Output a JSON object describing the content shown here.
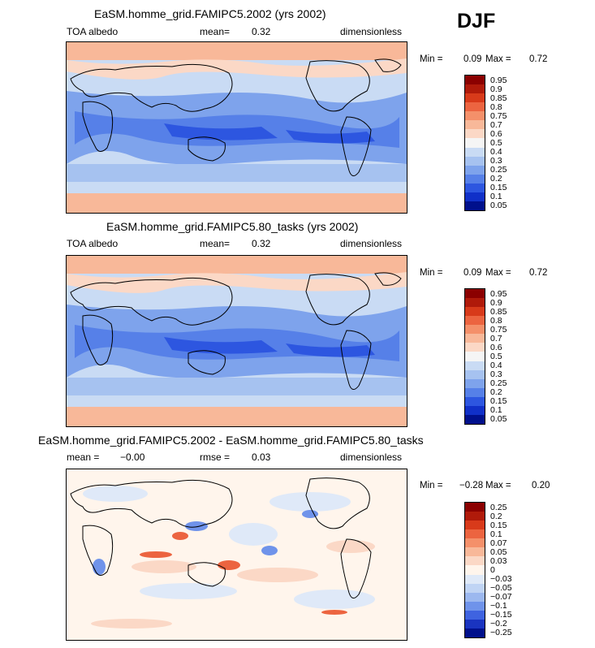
{
  "season": "DJF",
  "panels": [
    {
      "title": "EaSM.homme_grid.FAMIPC5.2002 (yrs 2002)",
      "variable": "TOA albedo",
      "stat": "mean=",
      "stat_value": "0.32",
      "units": "dimensionless",
      "min_label": "Min =",
      "min_value": "0.09",
      "max_label": "Max =",
      "max_value": "0.72",
      "levels": [
        "0.95",
        "0.9",
        "0.85",
        "0.8",
        "0.75",
        "0.7",
        "0.6",
        "0.5",
        "0.4",
        "0.3",
        "0.25",
        "0.2",
        "0.15",
        "0.1",
        "0.05"
      ]
    },
    {
      "title": "EaSM.homme_grid.FAMIPC5.80_tasks (yrs 2002)",
      "variable": "TOA albedo",
      "stat": "mean=",
      "stat_value": "0.32",
      "units": "dimensionless",
      "min_label": "Min =",
      "min_value": "0.09",
      "max_label": "Max =",
      "max_value": "0.72",
      "levels": [
        "0.95",
        "0.9",
        "0.85",
        "0.8",
        "0.75",
        "0.7",
        "0.6",
        "0.5",
        "0.4",
        "0.3",
        "0.25",
        "0.2",
        "0.15",
        "0.1",
        "0.05"
      ]
    },
    {
      "title": "EaSM.homme_grid.FAMIPC5.2002 - EaSM.homme_grid.FAMIPC5.80_tasks",
      "stat1": "mean =",
      "stat1_value": "−0.00",
      "stat2": "rmse =",
      "stat2_value": "0.03",
      "units": "dimensionless",
      "min_label": "Min =",
      "min_value": "−0.28",
      "max_label": "Max =",
      "max_value": "0.20",
      "levels": [
        "0.25",
        "0.2",
        "0.15",
        "0.1",
        "0.07",
        "0.05",
        "0.03",
        "0",
        "−0.03",
        "−0.05",
        "−0.07",
        "−0.1",
        "−0.15",
        "−0.2",
        "−0.25"
      ]
    }
  ],
  "colors": {
    "albedo_scale": [
      "#8b0000",
      "#b01a0a",
      "#d83a1a",
      "#ec6440",
      "#f4906a",
      "#f8b899",
      "#fbd8c6",
      "#f5f5f5",
      "#c9dbf4",
      "#a6c2f0",
      "#7ea3ec",
      "#5680e8",
      "#2d56e0",
      "#1030c8",
      "#00108c"
    ],
    "diff_scale": [
      "#8b0000",
      "#b01a0a",
      "#d83a1a",
      "#ec6440",
      "#f4906a",
      "#f8b899",
      "#fbd8c6",
      "#fff5ec",
      "#dfe9f8",
      "#c0d4f4",
      "#9cb8ef",
      "#6f93ea",
      "#3f63e0",
      "#1a34c0",
      "#00108c"
    ],
    "land_outline": "#000000"
  }
}
